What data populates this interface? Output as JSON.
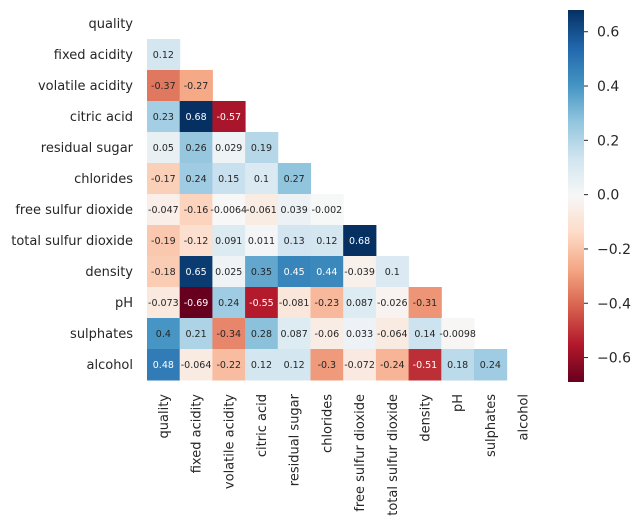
{
  "chart_data": {
    "type": "heatmap",
    "mask": "upper-triangle",
    "labels": [
      "quality",
      "fixed acidity",
      "volatile acidity",
      "citric acid",
      "residual sugar",
      "chlorides",
      "free sulfur dioxide",
      "total sulfur dioxide",
      "density",
      "pH",
      "sulphates",
      "alcohol"
    ],
    "values": [
      [],
      [
        "0.12"
      ],
      [
        "-0.37",
        "-0.27"
      ],
      [
        "0.23",
        "0.68",
        "-0.57"
      ],
      [
        "0.05",
        "0.26",
        "0.029",
        "0.19"
      ],
      [
        "-0.17",
        "0.24",
        "0.15",
        "0.1",
        "0.27"
      ],
      [
        "-0.047",
        "-0.16",
        "-0.0064",
        "-0.061",
        "0.039",
        "-0.002"
      ],
      [
        "-0.19",
        "-0.12",
        "0.091",
        "0.011",
        "0.13",
        "0.12",
        "0.68"
      ],
      [
        "-0.18",
        "0.65",
        "0.025",
        "0.35",
        "0.45",
        "0.44",
        "-0.039",
        "0.1"
      ],
      [
        "-0.073",
        "-0.69",
        "0.24",
        "-0.55",
        "-0.081",
        "-0.23",
        "0.087",
        "-0.026",
        "-0.31"
      ],
      [
        "0.4",
        "0.21",
        "-0.34",
        "0.28",
        "0.087",
        "-0.06",
        "0.033",
        "-0.064",
        "0.14",
        "-0.0098"
      ],
      [
        "0.48",
        "-0.064",
        "-0.22",
        "0.12",
        "0.12",
        "-0.3",
        "-0.072",
        "-0.24",
        "-0.51",
        "0.18",
        "0.24"
      ]
    ],
    "colormap": "RdBu",
    "colorbar": {
      "vmin": -0.69,
      "vmax": 0.68,
      "ticks": [
        "0.6",
        "0.4",
        "0.2",
        "0.0",
        "−0.2",
        "−0.4",
        "−0.6"
      ]
    }
  }
}
